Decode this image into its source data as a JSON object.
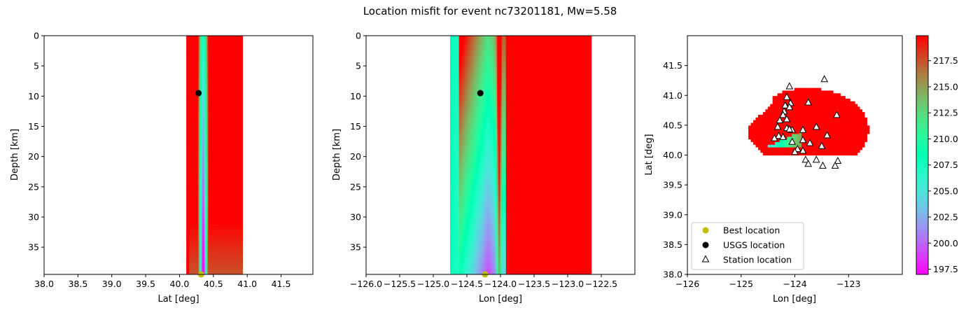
{
  "figure": {
    "title": "Location misfit for event nc73201181, Mw=5.58"
  },
  "chart_data": [
    {
      "type": "heatmap",
      "panel": "lat-depth",
      "xlabel": "Lat [deg]",
      "ylabel": "Depth [km]",
      "xlim": [
        38.0,
        41.97
      ],
      "ylim": [
        39.5,
        0
      ],
      "y_inverted": true,
      "xticks": [
        "38.0",
        "38.5",
        "39.0",
        "39.5",
        "40.0",
        "40.5",
        "41.0",
        "41.5"
      ],
      "yticks": [
        "0",
        "5",
        "10",
        "15",
        "20",
        "25",
        "30",
        "35"
      ],
      "data_extent_x": [
        40.1,
        40.93
      ],
      "min_misfit_trough_center": 40.35,
      "best_location": {
        "x": 40.32,
        "y": 39.5
      },
      "usgs_location": {
        "x": 40.28,
        "y": 9.5
      }
    },
    {
      "type": "heatmap",
      "panel": "lon-depth",
      "xlabel": "Lon [deg]",
      "ylabel": "Depth [km]",
      "xlim": [
        -126.0,
        -122.0
      ],
      "ylim": [
        39.5,
        0
      ],
      "y_inverted": true,
      "xticks": [
        "−126.0",
        "−125.5",
        "−125.0",
        "−124.5",
        "−124.0",
        "−123.5",
        "−123.0",
        "−122.5"
      ],
      "yticks": [
        "0",
        "5",
        "10",
        "15",
        "20",
        "25",
        "30",
        "35"
      ],
      "data_extent_x": [
        -124.75,
        -122.65
      ],
      "min_misfit_trough_center": -124.18,
      "best_location": {
        "x": -124.23,
        "y": 39.5
      },
      "usgs_location": {
        "x": -124.3,
        "y": 9.5
      }
    },
    {
      "type": "heatmap",
      "panel": "map",
      "xlabel": "Lon [deg]",
      "ylabel": "Lat [deg]",
      "xlim": [
        -126,
        -122
      ],
      "ylim": [
        38.0,
        42.0
      ],
      "xticks": [
        "−126",
        "−125",
        "−124",
        "−123"
      ],
      "yticks": [
        "38.0",
        "38.5",
        "39.0",
        "39.5",
        "40.0",
        "40.5",
        "41.0",
        "41.5"
      ],
      "stations": [
        [
          -123.45,
          41.27
        ],
        [
          -124.1,
          41.15
        ],
        [
          -124.15,
          40.97
        ],
        [
          -124.08,
          40.87
        ],
        [
          -124.18,
          40.83
        ],
        [
          -124.1,
          40.8
        ],
        [
          -123.75,
          40.88
        ],
        [
          -124.2,
          40.73
        ],
        [
          -124.22,
          40.67
        ],
        [
          -124.15,
          40.6
        ],
        [
          -124.28,
          40.58
        ],
        [
          -124.32,
          40.47
        ],
        [
          -124.15,
          40.45
        ],
        [
          -124.05,
          40.42
        ],
        [
          -124.1,
          40.43
        ],
        [
          -123.85,
          40.42
        ],
        [
          -123.6,
          40.47
        ],
        [
          -123.4,
          40.33
        ],
        [
          -123.22,
          40.67
        ],
        [
          -124.3,
          40.32
        ],
        [
          -124.38,
          40.28
        ],
        [
          -124.22,
          40.3
        ],
        [
          -124.05,
          40.22
        ],
        [
          -123.85,
          40.25
        ],
        [
          -123.72,
          40.2
        ],
        [
          -123.5,
          40.15
        ],
        [
          -123.95,
          40.1
        ],
        [
          -123.85,
          40.07
        ],
        [
          -124.0,
          40.05
        ],
        [
          -123.8,
          39.92
        ],
        [
          -123.6,
          39.92
        ],
        [
          -123.75,
          39.85
        ],
        [
          -123.48,
          39.82
        ],
        [
          -123.2,
          39.9
        ],
        [
          -123.25,
          39.82
        ]
      ],
      "legend": {
        "position": "lower-left",
        "entries": [
          {
            "label": "Best location",
            "marker": "circle",
            "color": "#bfbf00"
          },
          {
            "label": "USGS location",
            "marker": "circle",
            "color": "#000000"
          },
          {
            "label": "Station location",
            "marker": "triangle-open",
            "color": "#000000"
          }
        ]
      }
    }
  ],
  "colorbar": {
    "cmap": "rainbow",
    "range": [
      197.0,
      219.9
    ],
    "ticks": [
      "197.5",
      "200.0",
      "202.5",
      "205.0",
      "207.5",
      "210.0",
      "212.5",
      "215.0",
      "217.5"
    ]
  }
}
